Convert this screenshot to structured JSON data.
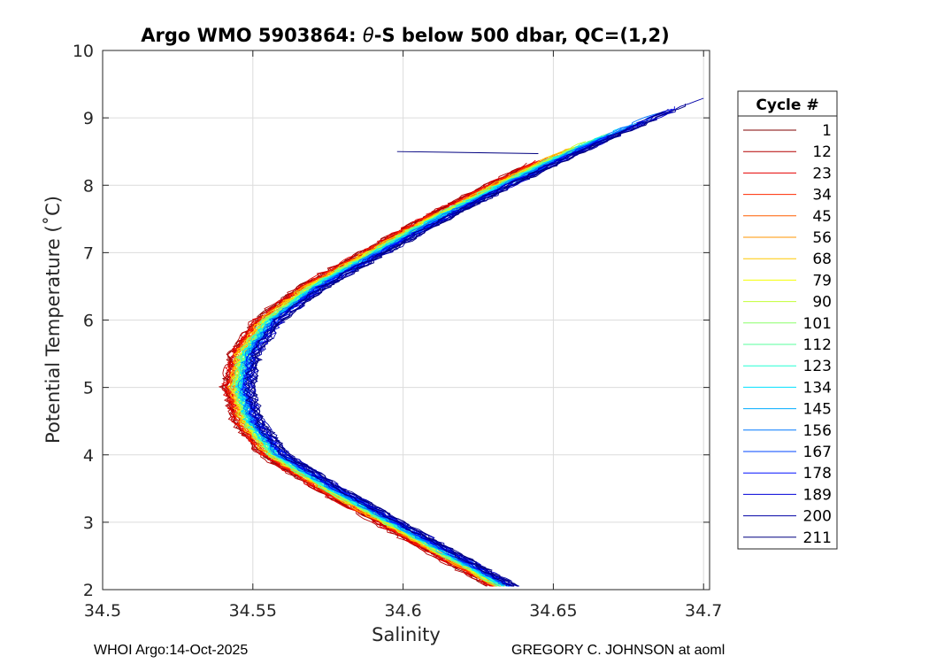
{
  "chart_data": {
    "type": "line",
    "title_prefix": "Argo WMO 5903864: ",
    "title_theta": "θ",
    "title_suffix": "-S below 500 dbar,  QC=(1,2)",
    "xlabel": "Salinity",
    "ylabel": "Potential Temperature (˚C)",
    "xlim": [
      34.5,
      34.702
    ],
    "ylim": [
      2,
      10
    ],
    "xticks": [
      34.5,
      34.55,
      34.6,
      34.65,
      34.7
    ],
    "xtick_labels": [
      "34.5",
      "34.55",
      "34.6",
      "34.65",
      "34.7"
    ],
    "yticks": [
      2,
      3,
      4,
      5,
      6,
      7,
      8,
      9,
      10
    ],
    "ytick_labels": [
      "2",
      "3",
      "4",
      "5",
      "6",
      "7",
      "8",
      "9",
      "10"
    ],
    "grid": true,
    "colormap": "jet",
    "legend": {
      "title": "Cycle #",
      "placement": "outside-right",
      "entries": [
        {
          "label": "1",
          "color": "#800000"
        },
        {
          "label": "12",
          "color": "#b30000"
        },
        {
          "label": "23",
          "color": "#e60000"
        },
        {
          "label": "34",
          "color": "#ff2a00"
        },
        {
          "label": "45",
          "color": "#ff5e00"
        },
        {
          "label": "56",
          "color": "#ff9400"
        },
        {
          "label": "68",
          "color": "#ffc800"
        },
        {
          "label": "79",
          "color": "#f6ff00"
        },
        {
          "label": "90",
          "color": "#c2ff36"
        },
        {
          "label": "101",
          "color": "#8cff6a"
        },
        {
          "label": "112",
          "color": "#58ff9e"
        },
        {
          "label": "123",
          "color": "#24ffd4"
        },
        {
          "label": "134",
          "color": "#00e0ff"
        },
        {
          "label": "145",
          "color": "#00acff"
        },
        {
          "label": "156",
          "color": "#0078ff"
        },
        {
          "label": "167",
          "color": "#0044ff"
        },
        {
          "label": "178",
          "color": "#0010ff"
        },
        {
          "label": "189",
          "color": "#0000d8"
        },
        {
          "label": "200",
          "color": "#0000a6"
        },
        {
          "label": "211",
          "color": "#000080"
        }
      ]
    },
    "series_shape": {
      "description": "theta-S profiles forming a salinity-minimum curve",
      "points": [
        [
          34.635,
          2.0
        ],
        [
          34.615,
          2.5
        ],
        [
          34.595,
          3.0
        ],
        [
          34.575,
          3.5
        ],
        [
          34.557,
          4.0
        ],
        [
          34.548,
          4.5
        ],
        [
          34.545,
          5.0
        ],
        [
          34.547,
          5.5
        ],
        [
          34.555,
          6.0
        ],
        [
          34.57,
          6.5
        ],
        [
          34.59,
          7.0
        ],
        [
          34.61,
          7.5
        ],
        [
          34.632,
          8.0
        ],
        [
          34.655,
          8.5
        ],
        [
          34.68,
          9.0
        ],
        [
          34.7,
          9.4
        ]
      ],
      "red_offset": -0.004,
      "blue_offset": 0.004
    },
    "outlier_segment": {
      "x": [
        34.598,
        34.645
      ],
      "y": [
        8.5,
        8.47
      ]
    }
  },
  "footer": {
    "left": "WHOI Argo:14-Oct-2025",
    "right": "GREGORY C. JOHNSON at aoml"
  }
}
